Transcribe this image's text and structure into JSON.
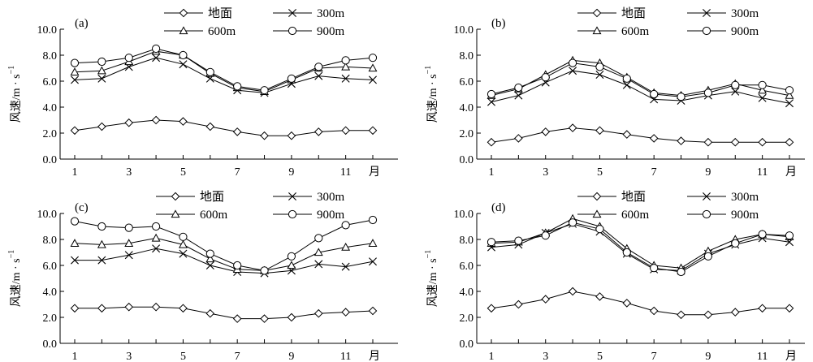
{
  "chart_data": [
    {
      "type": "line",
      "panel_label": "(a)",
      "ylabel": "风速/m · s",
      "ylabel_exp": "−1",
      "x": [
        1,
        2,
        3,
        4,
        5,
        6,
        7,
        8,
        9,
        10,
        11,
        12
      ],
      "x_tick_labels": [
        "1",
        "3",
        "5",
        "7",
        "9",
        "11",
        "月"
      ],
      "ylim": [
        0,
        10
      ],
      "y_ticks": [
        "0.0",
        "2.0",
        "4.0",
        "6.0",
        "8.0",
        "10.0"
      ],
      "grid": false,
      "legend_position": "top-center",
      "series": [
        {
          "name": "地面",
          "marker": "diamond",
          "values": [
            2.2,
            2.5,
            2.8,
            3.0,
            2.9,
            2.5,
            2.1,
            1.8,
            1.8,
            2.1,
            2.2,
            2.2
          ]
        },
        {
          "name": "300m",
          "marker": "x",
          "values": [
            6.1,
            6.2,
            7.1,
            7.8,
            7.3,
            6.2,
            5.3,
            5.1,
            5.8,
            6.4,
            6.2,
            6.1
          ]
        },
        {
          "name": "600m",
          "marker": "triangle",
          "values": [
            6.7,
            6.8,
            7.5,
            8.3,
            8.0,
            6.6,
            5.5,
            5.2,
            6.1,
            7.0,
            7.1,
            7.0
          ]
        },
        {
          "name": "900m",
          "marker": "circle",
          "values": [
            7.4,
            7.5,
            7.8,
            8.5,
            8.0,
            6.7,
            5.6,
            5.3,
            6.2,
            7.1,
            7.6,
            7.8
          ]
        }
      ]
    },
    {
      "type": "line",
      "panel_label": "(b)",
      "ylabel": "风速/m · s",
      "ylabel_exp": "−1",
      "x": [
        1,
        2,
        3,
        4,
        5,
        6,
        7,
        8,
        9,
        10,
        11,
        12
      ],
      "x_tick_labels": [
        "1",
        "3",
        "5",
        "7",
        "9",
        "11",
        "月"
      ],
      "ylim": [
        0,
        10
      ],
      "y_ticks": [
        "0.0",
        "2.0",
        "4.0",
        "6.0",
        "8.0",
        "10.0"
      ],
      "grid": false,
      "legend_position": "top-center",
      "series": [
        {
          "name": "地面",
          "marker": "diamond",
          "values": [
            1.3,
            1.6,
            2.1,
            2.4,
            2.2,
            1.9,
            1.6,
            1.4,
            1.3,
            1.3,
            1.3,
            1.3
          ]
        },
        {
          "name": "300m",
          "marker": "x",
          "values": [
            4.4,
            4.9,
            5.9,
            6.8,
            6.5,
            5.7,
            4.6,
            4.5,
            4.9,
            5.2,
            4.7,
            4.3
          ]
        },
        {
          "name": "600m",
          "marker": "triangle",
          "values": [
            4.9,
            5.4,
            6.5,
            7.6,
            7.4,
            6.3,
            5.1,
            4.9,
            5.3,
            5.8,
            5.3,
            4.9
          ]
        },
        {
          "name": "900m",
          "marker": "circle",
          "values": [
            5.0,
            5.5,
            6.3,
            7.4,
            7.1,
            6.2,
            5.0,
            4.8,
            5.1,
            5.7,
            5.7,
            5.3
          ]
        }
      ]
    },
    {
      "type": "line",
      "panel_label": "(c)",
      "ylabel": "风速/m · s",
      "ylabel_exp": "−1",
      "x": [
        1,
        2,
        3,
        4,
        5,
        6,
        7,
        8,
        9,
        10,
        11,
        12
      ],
      "x_tick_labels": [
        "1",
        "3",
        "5",
        "7",
        "9",
        "11",
        "月"
      ],
      "ylim": [
        0,
        10
      ],
      "y_ticks": [
        "0.0",
        "2.0",
        "4.0",
        "6.0",
        "8.0",
        "10.0"
      ],
      "grid": false,
      "legend_position": "top-center",
      "series": [
        {
          "name": "地面",
          "marker": "diamond",
          "values": [
            2.7,
            2.7,
            2.8,
            2.8,
            2.7,
            2.3,
            1.9,
            1.9,
            2.0,
            2.3,
            2.4,
            2.5
          ]
        },
        {
          "name": "300m",
          "marker": "x",
          "values": [
            6.4,
            6.4,
            6.8,
            7.3,
            6.9,
            6.0,
            5.5,
            5.4,
            5.6,
            6.1,
            5.9,
            6.3
          ]
        },
        {
          "name": "600m",
          "marker": "triangle",
          "values": [
            7.7,
            7.6,
            7.7,
            8.1,
            7.6,
            6.5,
            5.7,
            5.6,
            6.0,
            7.0,
            7.4,
            7.7
          ]
        },
        {
          "name": "900m",
          "marker": "circle",
          "values": [
            9.4,
            9.0,
            8.9,
            9.0,
            8.2,
            6.9,
            6.0,
            5.6,
            6.7,
            8.1,
            9.1,
            9.5
          ]
        }
      ]
    },
    {
      "type": "line",
      "panel_label": "(d)",
      "ylabel": "风速/m · s",
      "ylabel_exp": "−1",
      "x": [
        1,
        2,
        3,
        4,
        5,
        6,
        7,
        8,
        9,
        10,
        11,
        12
      ],
      "x_tick_labels": [
        "1",
        "3",
        "5",
        "7",
        "9",
        "11",
        "月"
      ],
      "ylim": [
        0,
        10
      ],
      "y_ticks": [
        "0.0",
        "2.0",
        "4.0",
        "6.0",
        "8.0",
        "10.0"
      ],
      "grid": false,
      "legend_position": "top-center",
      "series": [
        {
          "name": "地面",
          "marker": "diamond",
          "values": [
            2.7,
            3.0,
            3.4,
            4.0,
            3.6,
            3.1,
            2.5,
            2.2,
            2.2,
            2.4,
            2.7,
            2.7
          ]
        },
        {
          "name": "300m",
          "marker": "x",
          "values": [
            7.4,
            7.6,
            8.5,
            9.2,
            8.6,
            6.9,
            5.7,
            5.6,
            6.9,
            7.6,
            8.1,
            7.8
          ]
        },
        {
          "name": "600m",
          "marker": "triangle",
          "values": [
            7.7,
            7.8,
            8.5,
            9.6,
            9.0,
            7.3,
            6.0,
            5.8,
            7.1,
            8.0,
            8.4,
            8.2
          ]
        },
        {
          "name": "900m",
          "marker": "circle",
          "values": [
            7.8,
            7.9,
            8.3,
            9.3,
            8.8,
            7.0,
            5.8,
            5.5,
            6.7,
            7.7,
            8.4,
            8.3
          ]
        }
      ]
    }
  ]
}
